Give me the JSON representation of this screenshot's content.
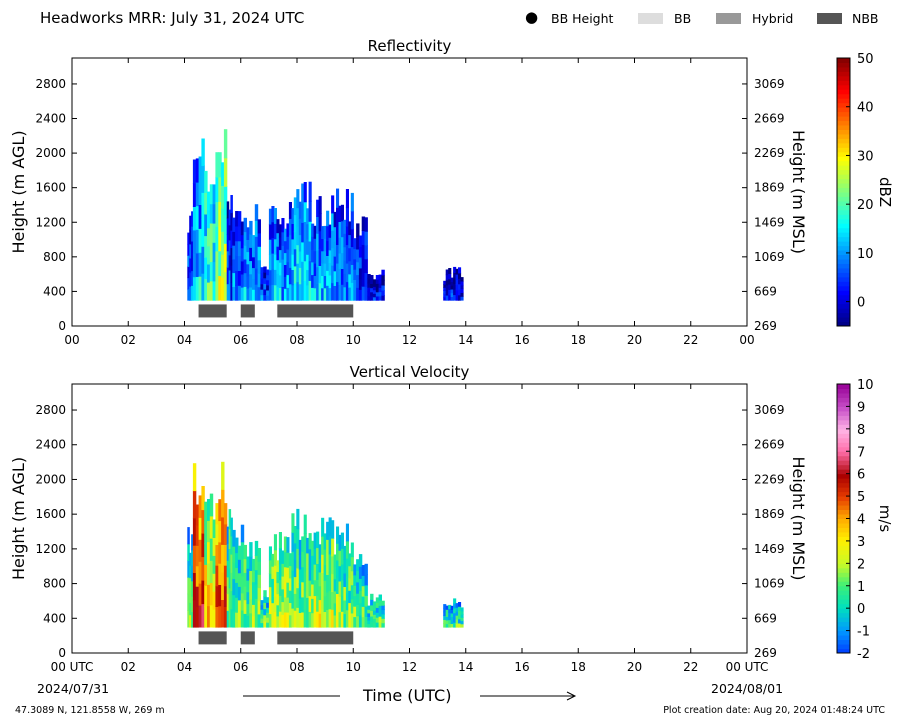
{
  "header": {
    "title": "Headworks MRR:  July 31, 2024 UTC"
  },
  "legend": [
    {
      "label": "BB Height",
      "kind": "dot",
      "color": "#000000"
    },
    {
      "label": "BB",
      "kind": "box",
      "color": "#dddddd"
    },
    {
      "label": "Hybrid",
      "kind": "box",
      "color": "#999999"
    },
    {
      "label": "NBB",
      "kind": "box",
      "color": "#555555"
    }
  ],
  "footer": {
    "location": "47.3089 N, 121.8558 W, 269 m",
    "created": "Plot creation date: Aug 20, 2024 01:48:24 UTC",
    "time_label": "Time (UTC)",
    "date_start": "2024/07/31",
    "date_end": "2024/08/01"
  },
  "colors": {
    "nbb": "#555555",
    "axis": "#000000"
  },
  "chart_data": [
    {
      "type": "heatmap",
      "title": "Reflectivity",
      "ylabel": "Height (m AGL)",
      "y2label": "Height (m MSL)",
      "xlim": [
        0,
        24
      ],
      "ylim": [
        0,
        3100
      ],
      "x_ticks": [
        "00",
        "02",
        "04",
        "06",
        "08",
        "10",
        "12",
        "14",
        "16",
        "18",
        "20",
        "22",
        "00"
      ],
      "y_ticks": [
        0,
        400,
        800,
        1200,
        1600,
        2000,
        2400,
        2800
      ],
      "y2_ticks": [
        269,
        669,
        1069,
        1469,
        1869,
        2269,
        2669,
        3069
      ],
      "colorbar": {
        "label": "dBZ",
        "range": [
          -5,
          50
        ],
        "ticks": [
          0,
          10,
          20,
          30,
          40,
          50
        ],
        "palette": "jet"
      },
      "echo_columns": [
        {
          "t0": 4.1,
          "t1": 4.3,
          "top": 1500,
          "level": 0.25
        },
        {
          "t0": 4.3,
          "t1": 4.7,
          "top": 2200,
          "level": 0.35
        },
        {
          "t0": 4.7,
          "t1": 5.1,
          "top": 1900,
          "level": 0.45
        },
        {
          "t0": 5.1,
          "t1": 5.5,
          "top": 2300,
          "level": 0.55
        },
        {
          "t0": 5.5,
          "t1": 5.7,
          "top": 1800,
          "level": 0.2
        },
        {
          "t0": 5.7,
          "t1": 6.1,
          "top": 1550,
          "level": 0.25
        },
        {
          "t0": 6.1,
          "t1": 6.7,
          "top": 1450,
          "level": 0.3
        },
        {
          "t0": 6.7,
          "t1": 7.0,
          "top": 800,
          "level": 0.2
        },
        {
          "t0": 7.0,
          "t1": 7.8,
          "top": 1450,
          "level": 0.3
        },
        {
          "t0": 7.8,
          "t1": 8.5,
          "top": 1800,
          "level": 0.35
        },
        {
          "t0": 8.5,
          "t1": 9.3,
          "top": 1600,
          "level": 0.3
        },
        {
          "t0": 9.3,
          "t1": 10.0,
          "top": 1600,
          "level": 0.28
        },
        {
          "t0": 10.0,
          "t1": 10.5,
          "top": 1300,
          "level": 0.2
        },
        {
          "t0": 10.5,
          "t1": 11.1,
          "top": 700,
          "level": 0.15
        },
        {
          "t0": 13.2,
          "t1": 13.9,
          "top": 700,
          "level": 0.15
        }
      ],
      "nbb_bars": [
        [
          4.5,
          5.5
        ],
        [
          6.0,
          6.5
        ],
        [
          7.3,
          10.0
        ]
      ]
    },
    {
      "type": "heatmap",
      "title": "Vertical Velocity",
      "ylabel": "Height (m AGL)",
      "y2label": "Height (m MSL)",
      "xlim": [
        0,
        24
      ],
      "ylim": [
        0,
        3100
      ],
      "x_ticks": [
        "00 UTC",
        "02",
        "04",
        "06",
        "08",
        "10",
        "12",
        "14",
        "16",
        "18",
        "20",
        "22",
        "00 UTC"
      ],
      "y_ticks": [
        0,
        400,
        800,
        1200,
        1600,
        2000,
        2400,
        2800
      ],
      "y2_ticks": [
        269,
        669,
        1069,
        1469,
        1869,
        2269,
        2669,
        3069
      ],
      "colorbar": {
        "label": "m/s",
        "range": [
          -2,
          10
        ],
        "ticks": [
          -2,
          -1,
          0,
          1,
          2,
          3,
          4,
          5,
          6,
          7,
          8,
          9,
          10
        ],
        "palette": "velocity"
      },
      "echo_columns": [
        {
          "t0": 4.1,
          "t1": 4.3,
          "top": 1500,
          "level": 0.25
        },
        {
          "t0": 4.3,
          "t1": 4.7,
          "top": 2200,
          "level": 0.62
        },
        {
          "t0": 4.7,
          "t1": 5.1,
          "top": 2000,
          "level": 0.42
        },
        {
          "t0": 5.1,
          "t1": 5.5,
          "top": 2300,
          "level": 0.58
        },
        {
          "t0": 5.5,
          "t1": 5.7,
          "top": 1800,
          "level": 0.3
        },
        {
          "t0": 5.7,
          "t1": 6.1,
          "top": 1550,
          "level": 0.28
        },
        {
          "t0": 6.1,
          "t1": 6.7,
          "top": 1450,
          "level": 0.3
        },
        {
          "t0": 6.7,
          "t1": 7.0,
          "top": 800,
          "level": 0.25
        },
        {
          "t0": 7.0,
          "t1": 7.8,
          "top": 1450,
          "level": 0.33
        },
        {
          "t0": 7.8,
          "t1": 8.5,
          "top": 1800,
          "level": 0.3
        },
        {
          "t0": 8.5,
          "t1": 9.3,
          "top": 1600,
          "level": 0.35
        },
        {
          "t0": 9.3,
          "t1": 10.0,
          "top": 1550,
          "level": 0.3
        },
        {
          "t0": 10.0,
          "t1": 10.5,
          "top": 1300,
          "level": 0.27
        },
        {
          "t0": 10.5,
          "t1": 11.1,
          "top": 700,
          "level": 0.25
        },
        {
          "t0": 13.2,
          "t1": 13.9,
          "top": 700,
          "level": 0.22
        }
      ],
      "nbb_bars": [
        [
          4.5,
          5.5
        ],
        [
          6.0,
          6.5
        ],
        [
          7.3,
          10.0
        ]
      ]
    }
  ]
}
